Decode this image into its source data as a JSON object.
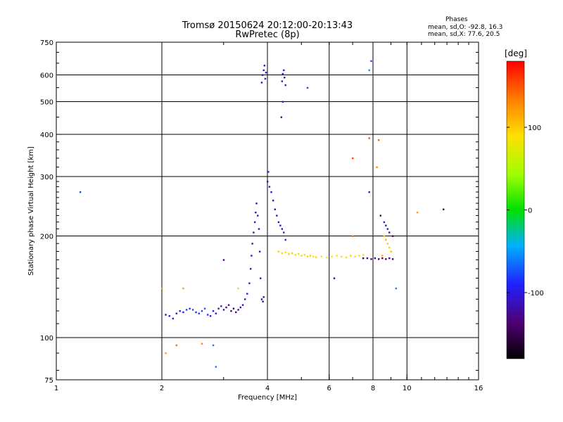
{
  "title_line1": "Tromsø 20150624 20:12:00-20:13:43",
  "title_line2": "RwPretec (8p)",
  "phases": {
    "heading": "Phases",
    "o_line": "mean, sd,O: -92.8, 16.3",
    "x_line": "mean, sd,X:  77.6, 20.5"
  },
  "chart_data": {
    "type": "scatter",
    "xlabel": "Frequency [MHz]",
    "ylabel": "Stationary phase Virtual Height [km]",
    "xscale": "log",
    "yscale": "log",
    "xlim": [
      1,
      16
    ],
    "ylim": [
      75,
      750
    ],
    "xticks": [
      1,
      2,
      4,
      6,
      8,
      10,
      16
    ],
    "yticks": [
      75,
      100,
      200,
      300,
      400,
      500,
      600,
      750
    ],
    "xgrid": [
      2,
      4,
      6,
      8,
      10
    ],
    "ygrid": [
      100,
      200,
      300,
      400,
      500,
      600
    ],
    "colorbar": {
      "label": "[deg]",
      "range": [
        -180,
        180
      ],
      "ticks": [
        100,
        0,
        -100
      ],
      "colormap": "rainbow"
    },
    "series": [
      {
        "points": [
          [
            1.17,
            270,
            -75
          ],
          [
            2.0,
            140,
            120
          ],
          [
            2.05,
            90,
            120
          ],
          [
            2.2,
            95,
            140
          ],
          [
            2.3,
            140,
            120
          ],
          [
            2.6,
            96,
            130
          ],
          [
            2.8,
            95,
            -60
          ],
          [
            2.85,
            82,
            -60
          ],
          [
            2.05,
            117,
            -120
          ],
          [
            2.1,
            116,
            -110
          ],
          [
            2.15,
            114,
            -100
          ],
          [
            2.2,
            118,
            -105
          ],
          [
            2.25,
            120,
            -95
          ],
          [
            2.3,
            119,
            -90
          ],
          [
            2.35,
            121,
            -80
          ],
          [
            2.4,
            122,
            -85
          ],
          [
            2.45,
            121,
            -75
          ],
          [
            2.5,
            119,
            -85
          ],
          [
            2.55,
            118,
            -80
          ],
          [
            2.6,
            120,
            -75
          ],
          [
            2.65,
            122,
            -70
          ],
          [
            2.7,
            117,
            -85
          ],
          [
            2.75,
            116,
            -95
          ],
          [
            2.8,
            120,
            -90
          ],
          [
            2.85,
            118,
            -100
          ],
          [
            2.9,
            122,
            -100
          ],
          [
            2.95,
            124,
            -105
          ],
          [
            3.0,
            121,
            -120
          ],
          [
            3.05,
            123,
            -130
          ],
          [
            3.1,
            125,
            -125
          ],
          [
            3.15,
            120,
            -140
          ],
          [
            3.2,
            122,
            -135
          ],
          [
            3.25,
            119,
            -140
          ],
          [
            3.3,
            121,
            -130
          ],
          [
            3.35,
            123,
            -120
          ],
          [
            3.4,
            125,
            -115
          ],
          [
            3.45,
            130,
            -110
          ],
          [
            3.5,
            135,
            -100
          ],
          [
            3.55,
            145,
            -105
          ],
          [
            3.58,
            160,
            -110
          ],
          [
            3.6,
            175,
            -105
          ],
          [
            3.62,
            190,
            -110
          ],
          [
            3.65,
            205,
            -108
          ],
          [
            3.68,
            220,
            -106
          ],
          [
            3.7,
            235,
            -110
          ],
          [
            3.72,
            250,
            -108
          ],
          [
            3.75,
            230,
            -105
          ],
          [
            3.78,
            210,
            -110
          ],
          [
            3.8,
            180,
            -115
          ],
          [
            3.82,
            150,
            -120
          ],
          [
            3.85,
            130,
            -115
          ],
          [
            3.88,
            128,
            -110
          ],
          [
            3.9,
            132,
            -120
          ],
          [
            3.0,
            170,
            -140
          ],
          [
            3.3,
            140,
            60
          ],
          [
            3.85,
            570,
            -110
          ],
          [
            3.87,
            600,
            -105
          ],
          [
            3.9,
            620,
            -108
          ],
          [
            3.92,
            640,
            -112
          ],
          [
            3.94,
            585,
            -110
          ],
          [
            3.96,
            610,
            -100
          ],
          [
            4.4,
            575,
            -110
          ],
          [
            4.42,
            605,
            -105
          ],
          [
            4.45,
            620,
            -108
          ],
          [
            4.47,
            590,
            -110
          ],
          [
            4.38,
            450,
            -120
          ],
          [
            4.42,
            500,
            -115
          ],
          [
            4.5,
            560,
            -105
          ],
          [
            5.2,
            550,
            -80
          ],
          [
            4.0,
            290,
            -110
          ],
          [
            4.02,
            310,
            -100
          ],
          [
            4.05,
            280,
            -105
          ],
          [
            4.1,
            270,
            -112
          ],
          [
            4.15,
            255,
            -110
          ],
          [
            4.2,
            240,
            -108
          ],
          [
            4.25,
            230,
            -110
          ],
          [
            4.3,
            220,
            -112
          ],
          [
            4.35,
            215,
            -105
          ],
          [
            4.4,
            210,
            -110
          ],
          [
            4.45,
            205,
            -108
          ],
          [
            4.5,
            195,
            -100
          ],
          [
            4.3,
            180,
            100
          ],
          [
            4.4,
            178,
            95
          ],
          [
            4.5,
            179,
            90
          ],
          [
            4.6,
            177,
            95
          ],
          [
            4.7,
            178,
            100
          ],
          [
            4.8,
            176,
            90
          ],
          [
            4.9,
            177,
            85
          ],
          [
            5.0,
            175,
            95
          ],
          [
            5.1,
            176,
            90
          ],
          [
            5.2,
            174,
            95
          ],
          [
            5.3,
            175,
            100
          ],
          [
            5.4,
            174,
            90
          ],
          [
            5.5,
            173,
            95
          ],
          [
            5.7,
            174,
            85
          ],
          [
            5.9,
            173,
            90
          ],
          [
            6.1,
            174,
            90
          ],
          [
            6.3,
            175,
            85
          ],
          [
            6.5,
            174,
            80
          ],
          [
            6.7,
            173,
            90
          ],
          [
            6.9,
            175,
            95
          ],
          [
            7.1,
            174,
            90
          ],
          [
            7.3,
            175,
            85
          ],
          [
            7.5,
            176,
            90
          ],
          [
            7.0,
            340,
            160
          ],
          [
            7.8,
            390,
            150
          ],
          [
            8.3,
            385,
            145
          ],
          [
            8.2,
            320,
            130
          ],
          [
            7.8,
            270,
            -100
          ],
          [
            7.8,
            620,
            -50
          ],
          [
            7.9,
            660,
            -75
          ],
          [
            6.2,
            150,
            -130
          ],
          [
            7.0,
            200,
            140
          ],
          [
            7.5,
            172,
            -140
          ],
          [
            7.7,
            172,
            -135
          ],
          [
            7.9,
            171,
            -140
          ],
          [
            8.1,
            172,
            -130
          ],
          [
            8.3,
            171,
            -140
          ],
          [
            8.5,
            172,
            -135
          ],
          [
            8.7,
            171,
            -140
          ],
          [
            8.9,
            172,
            -135
          ],
          [
            9.1,
            171,
            -140
          ],
          [
            8.4,
            230,
            -140
          ],
          [
            8.6,
            220,
            -100
          ],
          [
            8.7,
            215,
            -110
          ],
          [
            8.8,
            210,
            -105
          ],
          [
            8.9,
            205,
            -120
          ],
          [
            8.6,
            200,
            100
          ],
          [
            8.7,
            195,
            110
          ],
          [
            8.8,
            190,
            100
          ],
          [
            8.9,
            185,
            95
          ],
          [
            9.0,
            180,
            105
          ],
          [
            8.5,
            175,
            110
          ],
          [
            9.1,
            200,
            -140
          ],
          [
            9.3,
            140,
            -60
          ],
          [
            10.7,
            235,
            120
          ],
          [
            12.7,
            240,
            -140
          ]
        ]
      }
    ]
  }
}
